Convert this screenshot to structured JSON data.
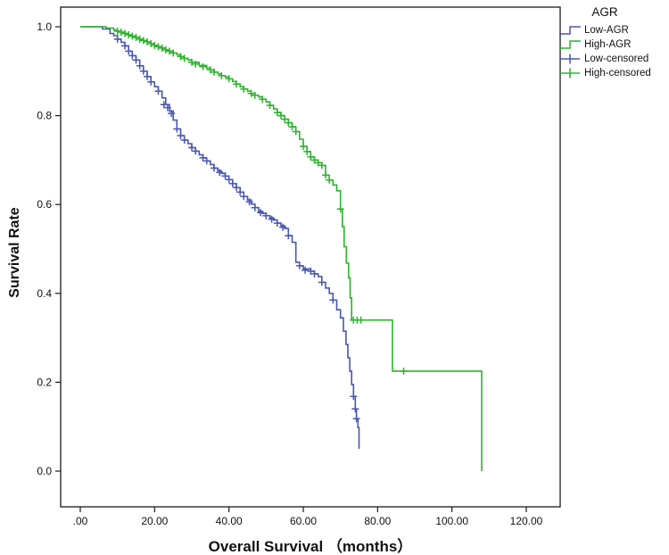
{
  "chart_data": {
    "type": "line",
    "subtype": "kaplan_meier_survival",
    "title": "",
    "xlabel": "Overall Survival （months）",
    "ylabel": "Survival Rate",
    "xlim": [
      0,
      130
    ],
    "ylim": [
      0,
      1.0
    ],
    "grid": false,
    "xticks": {
      "values": [
        0,
        20,
        40,
        60,
        80,
        100,
        120
      ],
      "labels": [
        ".00",
        "20.00",
        "40.00",
        "60.00",
        "80.00",
        "100.00",
        "120.00"
      ]
    },
    "yticks": {
      "values": [
        0,
        0.2,
        0.4,
        0.6,
        0.8,
        1.0
      ],
      "labels": [
        "0.0",
        "0.2",
        "0.4",
        "0.6",
        "0.8",
        "1.0"
      ]
    },
    "legend": {
      "title": "AGR",
      "position": "top-right",
      "items": [
        {
          "label": "Low-AGR",
          "marker": "step-line",
          "color": "#4a57ae"
        },
        {
          "label": "High-AGR",
          "marker": "step-line",
          "color": "#2db32d"
        },
        {
          "label": "Low-censored",
          "marker": "plus",
          "color": "#4a57ae"
        },
        {
          "label": "High-censored",
          "marker": "plus",
          "color": "#2db32d"
        }
      ]
    },
    "series": [
      {
        "name": "Low-AGR",
        "color": "#4a57ae",
        "step_points": [
          [
            0,
            1.0
          ],
          [
            6,
            0.995
          ],
          [
            8,
            0.985
          ],
          [
            9,
            0.98
          ],
          [
            10,
            0.972
          ],
          [
            11,
            0.965
          ],
          [
            12,
            0.957
          ],
          [
            13,
            0.945
          ],
          [
            14,
            0.935
          ],
          [
            15,
            0.925
          ],
          [
            16,
            0.912
          ],
          [
            17,
            0.9
          ],
          [
            18,
            0.888
          ],
          [
            19,
            0.876
          ],
          [
            20,
            0.865
          ],
          [
            21,
            0.855
          ],
          [
            22,
            0.84
          ],
          [
            23,
            0.825
          ],
          [
            24,
            0.81
          ],
          [
            25,
            0.79
          ],
          [
            26,
            0.77
          ],
          [
            27,
            0.755
          ],
          [
            28,
            0.745
          ],
          [
            29,
            0.737
          ],
          [
            30,
            0.728
          ],
          [
            31,
            0.72
          ],
          [
            32,
            0.712
          ],
          [
            33,
            0.705
          ],
          [
            34,
            0.698
          ],
          [
            35,
            0.69
          ],
          [
            36,
            0.682
          ],
          [
            37,
            0.676
          ],
          [
            38,
            0.67
          ],
          [
            39,
            0.664
          ],
          [
            40,
            0.656
          ],
          [
            41,
            0.647
          ],
          [
            42,
            0.638
          ],
          [
            43,
            0.628
          ],
          [
            44,
            0.618
          ],
          [
            45,
            0.61
          ],
          [
            46,
            0.601
          ],
          [
            47,
            0.593
          ],
          [
            48,
            0.585
          ],
          [
            49,
            0.58
          ],
          [
            50,
            0.575
          ],
          [
            51,
            0.57
          ],
          [
            52,
            0.565
          ],
          [
            53,
            0.558
          ],
          [
            54,
            0.552
          ],
          [
            55,
            0.546
          ],
          [
            56,
            0.53
          ],
          [
            57,
            0.515
          ],
          [
            58,
            0.47
          ],
          [
            59,
            0.462
          ],
          [
            60,
            0.455
          ],
          [
            62,
            0.45
          ],
          [
            63,
            0.444
          ],
          [
            64,
            0.438
          ],
          [
            65,
            0.425
          ],
          [
            66,
            0.412
          ],
          [
            67,
            0.4
          ],
          [
            68,
            0.385
          ],
          [
            69,
            0.363
          ],
          [
            70,
            0.345
          ],
          [
            70.8,
            0.315
          ],
          [
            71.5,
            0.285
          ],
          [
            72,
            0.255
          ],
          [
            72.5,
            0.225
          ],
          [
            73,
            0.195
          ],
          [
            73.5,
            0.168
          ],
          [
            74,
            0.14
          ],
          [
            74.3,
            0.118
          ],
          [
            74.7,
            0.098
          ],
          [
            75,
            0.05
          ]
        ],
        "censored": [
          [
            10,
            0.972
          ],
          [
            12,
            0.957
          ],
          [
            13,
            0.945
          ],
          [
            14,
            0.935
          ],
          [
            15,
            0.925
          ],
          [
            16,
            0.912
          ],
          [
            17,
            0.9
          ],
          [
            18,
            0.888
          ],
          [
            19,
            0.876
          ],
          [
            21,
            0.855
          ],
          [
            22.5,
            0.825
          ],
          [
            23.5,
            0.818
          ],
          [
            24.5,
            0.805
          ],
          [
            26,
            0.77
          ],
          [
            27,
            0.755
          ],
          [
            28,
            0.745
          ],
          [
            30,
            0.728
          ],
          [
            31,
            0.72
          ],
          [
            33,
            0.705
          ],
          [
            34,
            0.698
          ],
          [
            36,
            0.682
          ],
          [
            37.5,
            0.672
          ],
          [
            39,
            0.664
          ],
          [
            40,
            0.656
          ],
          [
            41,
            0.647
          ],
          [
            42,
            0.638
          ],
          [
            43,
            0.628
          ],
          [
            44,
            0.618
          ],
          [
            45.5,
            0.606
          ],
          [
            47,
            0.593
          ],
          [
            48.5,
            0.582
          ],
          [
            50,
            0.575
          ],
          [
            51.5,
            0.567
          ],
          [
            53,
            0.558
          ],
          [
            54.5,
            0.549
          ],
          [
            56,
            0.53
          ],
          [
            59,
            0.462
          ],
          [
            60.5,
            0.452
          ],
          [
            62,
            0.45
          ],
          [
            63,
            0.444
          ],
          [
            65,
            0.425
          ],
          [
            68,
            0.385
          ],
          [
            73.5,
            0.168
          ],
          [
            74,
            0.14
          ],
          [
            74.3,
            0.118
          ]
        ]
      },
      {
        "name": "High-AGR",
        "color": "#2db32d",
        "step_points": [
          [
            0,
            1.0
          ],
          [
            7,
            0.997
          ],
          [
            9,
            0.993
          ],
          [
            10,
            0.99
          ],
          [
            11,
            0.988
          ],
          [
            12,
            0.985
          ],
          [
            13,
            0.982
          ],
          [
            14,
            0.979
          ],
          [
            15,
            0.976
          ],
          [
            16,
            0.972
          ],
          [
            17,
            0.969
          ],
          [
            18,
            0.966
          ],
          [
            19,
            0.962
          ],
          [
            20,
            0.958
          ],
          [
            21,
            0.955
          ],
          [
            22,
            0.952
          ],
          [
            23,
            0.948
          ],
          [
            24,
            0.945
          ],
          [
            25,
            0.941
          ],
          [
            26,
            0.937
          ],
          [
            27,
            0.933
          ],
          [
            28,
            0.929
          ],
          [
            29,
            0.925
          ],
          [
            30,
            0.92
          ],
          [
            32,
            0.913
          ],
          [
            34,
            0.907
          ],
          [
            35,
            0.903
          ],
          [
            36,
            0.898
          ],
          [
            37,
            0.894
          ],
          [
            38,
            0.89
          ],
          [
            39,
            0.887
          ],
          [
            40,
            0.883
          ],
          [
            41,
            0.877
          ],
          [
            42,
            0.871
          ],
          [
            43,
            0.865
          ],
          [
            44,
            0.86
          ],
          [
            45,
            0.855
          ],
          [
            46,
            0.85
          ],
          [
            47,
            0.846
          ],
          [
            48,
            0.842
          ],
          [
            49,
            0.837
          ],
          [
            50,
            0.831
          ],
          [
            51,
            0.823
          ],
          [
            52,
            0.815
          ],
          [
            53,
            0.807
          ],
          [
            54,
            0.8
          ],
          [
            55,
            0.792
          ],
          [
            56,
            0.784
          ],
          [
            57,
            0.775
          ],
          [
            58,
            0.764
          ],
          [
            59,
            0.747
          ],
          [
            60,
            0.731
          ],
          [
            61,
            0.719
          ],
          [
            62,
            0.707
          ],
          [
            63,
            0.7
          ],
          [
            64,
            0.694
          ],
          [
            65,
            0.688
          ],
          [
            66,
            0.666
          ],
          [
            67,
            0.655
          ],
          [
            68,
            0.644
          ],
          [
            69,
            0.631
          ],
          [
            70,
            0.59
          ],
          [
            70.5,
            0.55
          ],
          [
            71,
            0.505
          ],
          [
            71.6,
            0.468
          ],
          [
            72.2,
            0.435
          ],
          [
            72.6,
            0.39
          ],
          [
            73,
            0.34
          ],
          [
            84,
            0.225
          ],
          [
            108,
            0.0
          ]
        ],
        "censored": [
          [
            10,
            0.99
          ],
          [
            11,
            0.988
          ],
          [
            12,
            0.985
          ],
          [
            13,
            0.982
          ],
          [
            14,
            0.979
          ],
          [
            15,
            0.976
          ],
          [
            16,
            0.972
          ],
          [
            17,
            0.969
          ],
          [
            18,
            0.966
          ],
          [
            19,
            0.962
          ],
          [
            20,
            0.958
          ],
          [
            21,
            0.955
          ],
          [
            22,
            0.952
          ],
          [
            23,
            0.948
          ],
          [
            24,
            0.945
          ],
          [
            25,
            0.941
          ],
          [
            27,
            0.933
          ],
          [
            28,
            0.929
          ],
          [
            30,
            0.92
          ],
          [
            31,
            0.916
          ],
          [
            33,
            0.91
          ],
          [
            35,
            0.903
          ],
          [
            36,
            0.898
          ],
          [
            38,
            0.89
          ],
          [
            40,
            0.883
          ],
          [
            42,
            0.871
          ],
          [
            44,
            0.86
          ],
          [
            46,
            0.85
          ],
          [
            47,
            0.846
          ],
          [
            49,
            0.837
          ],
          [
            51,
            0.823
          ],
          [
            53,
            0.807
          ],
          [
            54,
            0.8
          ],
          [
            55,
            0.792
          ],
          [
            56,
            0.784
          ],
          [
            57,
            0.775
          ],
          [
            58,
            0.764
          ],
          [
            60,
            0.731
          ],
          [
            61,
            0.719
          ],
          [
            62,
            0.707
          ],
          [
            63,
            0.7
          ],
          [
            64,
            0.694
          ],
          [
            65,
            0.688
          ],
          [
            66,
            0.666
          ],
          [
            67,
            0.655
          ],
          [
            70,
            0.59
          ],
          [
            73.5,
            0.34
          ],
          [
            74.5,
            0.34
          ],
          [
            75.5,
            0.34
          ],
          [
            87,
            0.225
          ]
        ]
      }
    ]
  }
}
